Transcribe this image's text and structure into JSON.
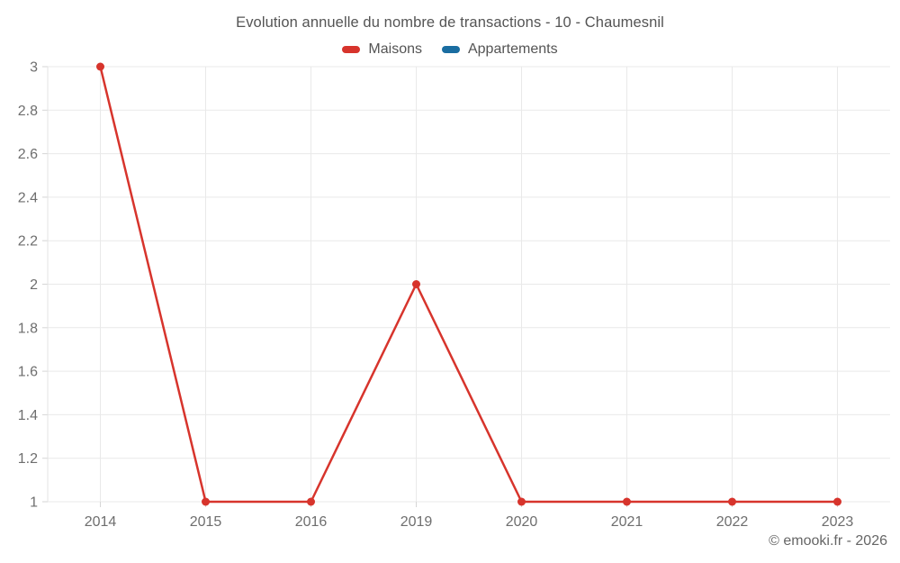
{
  "header": {
    "title": "Evolution annuelle du nombre de transactions - 10 - Chaumesnil"
  },
  "legend": {
    "items": [
      {
        "label": "Maisons",
        "color": "#d7342c"
      },
      {
        "label": "Appartements",
        "color": "#1a6da1"
      }
    ]
  },
  "footer": {
    "copyright": "© emooki.fr - 2026"
  },
  "colors": {
    "background": "#ffffff",
    "grid": "#e9e9e9",
    "axis_border": "#e3e3e3",
    "tick_mark": "#d6d6d6",
    "axis_text": "#6e6e6e",
    "title_text": "#545454",
    "maisons_red": "#d7342c",
    "appartements_blue": "#1a6da1"
  },
  "chart_data": {
    "type": "line",
    "title": "Evolution annuelle du nombre de transactions - 10 - Chaumesnil",
    "categories": [
      "2014",
      "2015",
      "2016",
      "2019",
      "2020",
      "2021",
      "2022",
      "2023"
    ],
    "series": [
      {
        "name": "Maisons",
        "color": "#d7342c",
        "values": [
          3,
          1,
          1,
          2,
          1,
          1,
          1,
          1
        ]
      },
      {
        "name": "Appartements",
        "color": "#1a6da1",
        "values": []
      }
    ],
    "xlabel": "",
    "ylabel": "",
    "ylim": [
      1,
      3
    ],
    "yticks": [
      1,
      1.2,
      1.4,
      1.6,
      1.8,
      2,
      2.2,
      2.4,
      2.6,
      2.8,
      3
    ],
    "grid": true,
    "legend_position": "top"
  }
}
